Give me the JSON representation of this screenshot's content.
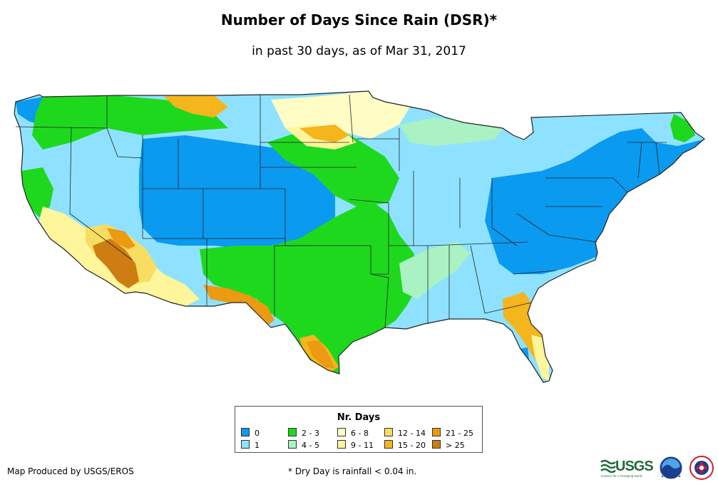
{
  "title": "Number of Days Since Rain (DSR)*",
  "subtitle": "in past 30 days, as of Mar 31, 2017",
  "legend": {
    "title": "Nr. Days",
    "items": [
      {
        "label": "0",
        "color": "#0a9af0"
      },
      {
        "label": "1",
        "color": "#8fe2ff"
      },
      {
        "label": "2 - 3",
        "color": "#1ed81e"
      },
      {
        "label": "4 - 5",
        "color": "#aaf2c4"
      },
      {
        "label": "6 - 8",
        "color": "#fffcc6"
      },
      {
        "label": "9 - 11",
        "color": "#fff59a"
      },
      {
        "label": "12 - 14",
        "color": "#f9dd62"
      },
      {
        "label": "15 - 20",
        "color": "#f5b51c"
      },
      {
        "label": "21 - 25",
        "color": "#eb9a12"
      },
      {
        "label": "> 25",
        "color": "#cd7d12"
      }
    ]
  },
  "footer": {
    "producer": "Map Produced by USGS/EROS",
    "footnote": "* Dry Day is rainfall < 0.04 in."
  },
  "logos": {
    "usgs": "USGS",
    "usgs_tagline": "science for a changing world",
    "usgs_icon": "usgs-wave-icon",
    "noaa_icon": "noaa-seal-icon",
    "nws_icon": "nws-seal-icon"
  }
}
